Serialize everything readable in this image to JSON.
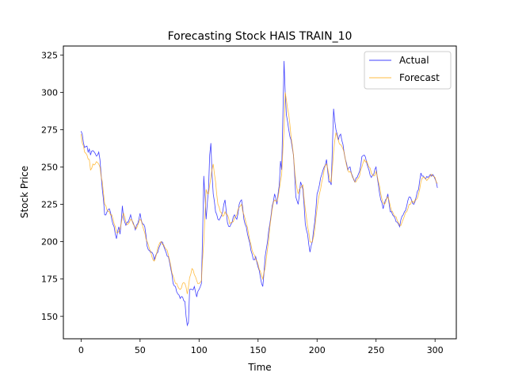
{
  "chart_data": {
    "type": "line",
    "title": "Forecasting Stock HAIS TRAIN_10",
    "xlabel": "Time",
    "ylabel": "Stock Price",
    "xlim": [
      -15,
      318
    ],
    "ylim": [
      135,
      331
    ],
    "xticks": [
      0,
      50,
      100,
      150,
      200,
      250,
      300
    ],
    "yticks": [
      150,
      175,
      200,
      225,
      250,
      275,
      300,
      325
    ],
    "legend": "top-right",
    "grid": false,
    "colors": {
      "actual": "#0000ff",
      "forecast": "#ffa500"
    },
    "series": [
      {
        "name": "Actual",
        "color": "#0000ff",
        "anchors": [
          [
            0,
            274
          ],
          [
            1,
            272
          ],
          [
            3,
            263
          ],
          [
            5,
            264
          ],
          [
            6,
            260
          ],
          [
            7,
            262
          ],
          [
            8,
            258
          ],
          [
            10,
            261
          ],
          [
            12,
            259
          ],
          [
            14,
            258
          ],
          [
            15,
            260
          ],
          [
            16,
            255
          ],
          [
            17,
            245
          ],
          [
            18,
            235
          ],
          [
            19,
            228
          ],
          [
            20,
            218
          ],
          [
            22,
            220
          ],
          [
            24,
            222
          ],
          [
            26,
            215
          ],
          [
            28,
            210
          ],
          [
            29,
            205
          ],
          [
            30,
            202
          ],
          [
            32,
            210
          ],
          [
            33,
            205
          ],
          [
            34,
            213
          ],
          [
            35,
            224
          ],
          [
            36,
            216
          ],
          [
            38,
            211
          ],
          [
            40,
            213
          ],
          [
            42,
            218
          ],
          [
            44,
            213
          ],
          [
            46,
            208
          ],
          [
            48,
            212
          ],
          [
            50,
            219
          ],
          [
            52,
            212
          ],
          [
            54,
            210
          ],
          [
            56,
            197
          ],
          [
            58,
            194
          ],
          [
            60,
            193
          ],
          [
            62,
            188
          ],
          [
            64,
            192
          ],
          [
            66,
            196
          ],
          [
            68,
            200
          ],
          [
            70,
            197
          ],
          [
            72,
            193
          ],
          [
            74,
            190
          ],
          [
            76,
            182
          ],
          [
            78,
            172
          ],
          [
            80,
            170
          ],
          [
            82,
            165
          ],
          [
            84,
            162
          ],
          [
            86,
            163
          ],
          [
            88,
            160
          ],
          [
            89,
            150
          ],
          [
            90,
            144
          ],
          [
            91,
            146
          ],
          [
            92,
            168
          ],
          [
            94,
            168
          ],
          [
            96,
            170
          ],
          [
            98,
            163
          ],
          [
            100,
            168
          ],
          [
            102,
            172
          ],
          [
            103,
            205
          ],
          [
            104,
            244
          ],
          [
            105,
            230
          ],
          [
            106,
            215
          ],
          [
            108,
            235
          ],
          [
            109,
            258
          ],
          [
            110,
            266
          ],
          [
            111,
            245
          ],
          [
            112,
            232
          ],
          [
            114,
            220
          ],
          [
            116,
            215
          ],
          [
            118,
            216
          ],
          [
            120,
            220
          ],
          [
            122,
            228
          ],
          [
            124,
            213
          ],
          [
            126,
            210
          ],
          [
            128,
            213
          ],
          [
            130,
            218
          ],
          [
            132,
            215
          ],
          [
            134,
            225
          ],
          [
            136,
            228
          ],
          [
            138,
            215
          ],
          [
            140,
            210
          ],
          [
            142,
            202
          ],
          [
            144,
            194
          ],
          [
            146,
            188
          ],
          [
            148,
            190
          ],
          [
            150,
            183
          ],
          [
            152,
            176
          ],
          [
            153,
            172
          ],
          [
            154,
            170
          ],
          [
            156,
            190
          ],
          [
            158,
            200
          ],
          [
            160,
            212
          ],
          [
            162,
            224
          ],
          [
            164,
            232
          ],
          [
            166,
            225
          ],
          [
            168,
            238
          ],
          [
            169,
            254
          ],
          [
            170,
            248
          ],
          [
            171,
            283
          ],
          [
            172,
            321
          ],
          [
            173,
            300
          ],
          [
            174,
            285
          ],
          [
            176,
            275
          ],
          [
            178,
            268
          ],
          [
            180,
            258
          ],
          [
            182,
            230
          ],
          [
            184,
            225
          ],
          [
            186,
            240
          ],
          [
            188,
            235
          ],
          [
            190,
            212
          ],
          [
            192,
            205
          ],
          [
            194,
            193
          ],
          [
            196,
            200
          ],
          [
            198,
            213
          ],
          [
            200,
            232
          ],
          [
            202,
            238
          ],
          [
            204,
            245
          ],
          [
            206,
            250
          ],
          [
            208,
            255
          ],
          [
            210,
            240
          ],
          [
            212,
            238
          ],
          [
            214,
            289
          ],
          [
            216,
            275
          ],
          [
            218,
            268
          ],
          [
            220,
            272
          ],
          [
            222,
            265
          ],
          [
            224,
            255
          ],
          [
            226,
            248
          ],
          [
            228,
            250
          ],
          [
            230,
            244
          ],
          [
            232,
            240
          ],
          [
            234,
            243
          ],
          [
            236,
            247
          ],
          [
            238,
            257
          ],
          [
            240,
            258
          ],
          [
            242,
            253
          ],
          [
            244,
            248
          ],
          [
            246,
            243
          ],
          [
            248,
            245
          ],
          [
            250,
            250
          ],
          [
            252,
            238
          ],
          [
            254,
            228
          ],
          [
            256,
            222
          ],
          [
            258,
            228
          ],
          [
            260,
            232
          ],
          [
            262,
            220
          ],
          [
            264,
            218
          ],
          [
            266,
            216
          ],
          [
            268,
            213
          ],
          [
            270,
            210
          ],
          [
            272,
            217
          ],
          [
            274,
            220
          ],
          [
            276,
            224
          ],
          [
            278,
            230
          ],
          [
            280,
            228
          ],
          [
            282,
            225
          ],
          [
            284,
            230
          ],
          [
            286,
            235
          ],
          [
            288,
            246
          ],
          [
            290,
            244
          ],
          [
            292,
            242
          ],
          [
            294,
            243
          ],
          [
            296,
            245
          ],
          [
            298,
            245
          ],
          [
            300,
            242
          ],
          [
            302,
            236
          ]
        ]
      },
      {
        "name": "Forecast",
        "color": "#ffa500",
        "anchors": [
          [
            0,
            272
          ],
          [
            1,
            266
          ],
          [
            3,
            260
          ],
          [
            5,
            258
          ],
          [
            7,
            255
          ],
          [
            8,
            248
          ],
          [
            10,
            252
          ],
          [
            12,
            252
          ],
          [
            14,
            253
          ],
          [
            16,
            250
          ],
          [
            18,
            240
          ],
          [
            20,
            225
          ],
          [
            22,
            221
          ],
          [
            24,
            220
          ],
          [
            26,
            218
          ],
          [
            28,
            212
          ],
          [
            30,
            206
          ],
          [
            32,
            207
          ],
          [
            34,
            212
          ],
          [
            36,
            219
          ],
          [
            38,
            213
          ],
          [
            40,
            212
          ],
          [
            42,
            215
          ],
          [
            44,
            212
          ],
          [
            46,
            209
          ],
          [
            48,
            211
          ],
          [
            50,
            215
          ],
          [
            52,
            211
          ],
          [
            54,
            206
          ],
          [
            56,
            200
          ],
          [
            58,
            195
          ],
          [
            60,
            190
          ],
          [
            62,
            187
          ],
          [
            64,
            192
          ],
          [
            66,
            198
          ],
          [
            68,
            200
          ],
          [
            70,
            198
          ],
          [
            72,
            195
          ],
          [
            74,
            191
          ],
          [
            76,
            184
          ],
          [
            78,
            177
          ],
          [
            80,
            172
          ],
          [
            82,
            170
          ],
          [
            84,
            168
          ],
          [
            86,
            172
          ],
          [
            88,
            172
          ],
          [
            90,
            165
          ],
          [
            92,
            176
          ],
          [
            94,
            182
          ],
          [
            96,
            178
          ],
          [
            98,
            174
          ],
          [
            100,
            172
          ],
          [
            102,
            174
          ],
          [
            104,
            200
          ],
          [
            106,
            235
          ],
          [
            108,
            232
          ],
          [
            110,
            243
          ],
          [
            112,
            252
          ],
          [
            114,
            240
          ],
          [
            116,
            225
          ],
          [
            118,
            220
          ],
          [
            120,
            217
          ],
          [
            122,
            220
          ],
          [
            124,
            218
          ],
          [
            126,
            212
          ],
          [
            128,
            213
          ],
          [
            130,
            216
          ],
          [
            132,
            218
          ],
          [
            134,
            223
          ],
          [
            136,
            225
          ],
          [
            138,
            218
          ],
          [
            140,
            212
          ],
          [
            142,
            205
          ],
          [
            144,
            198
          ],
          [
            146,
            192
          ],
          [
            148,
            188
          ],
          [
            150,
            185
          ],
          [
            152,
            180
          ],
          [
            154,
            175
          ],
          [
            156,
            182
          ],
          [
            158,
            195
          ],
          [
            160,
            210
          ],
          [
            162,
            222
          ],
          [
            164,
            228
          ],
          [
            166,
            227
          ],
          [
            168,
            235
          ],
          [
            170,
            245
          ],
          [
            172,
            275
          ],
          [
            173,
            300
          ],
          [
            174,
            295
          ],
          [
            176,
            285
          ],
          [
            178,
            270
          ],
          [
            180,
            258
          ],
          [
            182,
            240
          ],
          [
            184,
            232
          ],
          [
            186,
            236
          ],
          [
            188,
            238
          ],
          [
            190,
            222
          ],
          [
            192,
            210
          ],
          [
            194,
            200
          ],
          [
            196,
            200
          ],
          [
            198,
            208
          ],
          [
            200,
            222
          ],
          [
            202,
            232
          ],
          [
            204,
            240
          ],
          [
            206,
            248
          ],
          [
            208,
            252
          ],
          [
            210,
            245
          ],
          [
            212,
            240
          ],
          [
            214,
            260
          ],
          [
            216,
            273
          ],
          [
            218,
            268
          ],
          [
            220,
            265
          ],
          [
            222,
            262
          ],
          [
            224,
            255
          ],
          [
            226,
            248
          ],
          [
            228,
            247
          ],
          [
            230,
            243
          ],
          [
            232,
            240
          ],
          [
            234,
            242
          ],
          [
            236,
            244
          ],
          [
            238,
            250
          ],
          [
            240,
            255
          ],
          [
            242,
            254
          ],
          [
            244,
            250
          ],
          [
            246,
            246
          ],
          [
            248,
            244
          ],
          [
            250,
            247
          ],
          [
            252,
            240
          ],
          [
            254,
            232
          ],
          [
            256,
            226
          ],
          [
            258,
            226
          ],
          [
            260,
            230
          ],
          [
            262,
            224
          ],
          [
            264,
            220
          ],
          [
            266,
            217
          ],
          [
            268,
            214
          ],
          [
            270,
            211
          ],
          [
            272,
            213
          ],
          [
            274,
            217
          ],
          [
            276,
            220
          ],
          [
            278,
            225
          ],
          [
            280,
            227
          ],
          [
            282,
            226
          ],
          [
            284,
            228
          ],
          [
            286,
            232
          ],
          [
            288,
            240
          ],
          [
            290,
            243
          ],
          [
            292,
            242
          ],
          [
            294,
            242
          ],
          [
            296,
            244
          ],
          [
            298,
            244
          ],
          [
            300,
            243
          ],
          [
            302,
            239
          ]
        ]
      }
    ]
  }
}
